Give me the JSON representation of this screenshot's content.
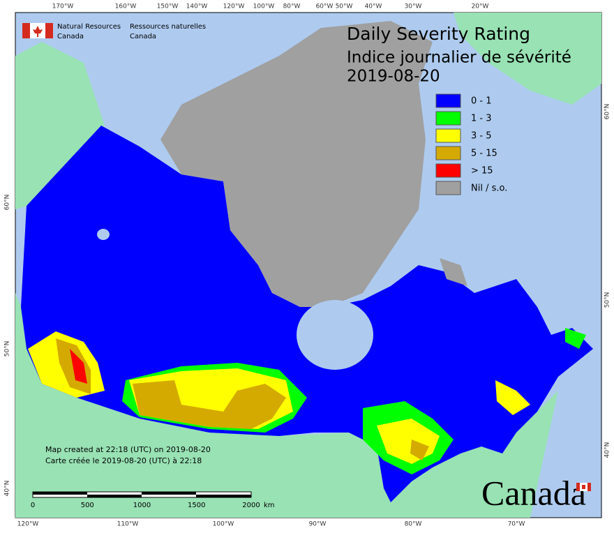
{
  "logo_text": {
    "en_line1": "Natural Resources",
    "en_line2": "Canada",
    "fr_line1": "Ressources naturelles",
    "fr_line2": "Canada"
  },
  "title": [
    "Daily Severity Rating",
    "Indice journalier de sévérité",
    "2019-08-20"
  ],
  "legend": [
    {
      "label": "0 - 1",
      "color": "#0000ff"
    },
    {
      "label": "1 - 3",
      "color": "#00ff00"
    },
    {
      "label": "3 - 5",
      "color": "#ffff00"
    },
    {
      "label": "5 - 15",
      "color": "#d4aa00"
    },
    {
      "label": "> 15",
      "color": "#ff0000"
    },
    {
      "label": "Nil / s.o.",
      "color": "#a0a0a0"
    }
  ],
  "graticule": {
    "top": [
      "170°W",
      "160°W",
      "150°W",
      "140°W",
      "120°W",
      "100°W",
      "80°W",
      "60°W",
      "50°W",
      "40°W",
      "30°W",
      "20°W"
    ],
    "bottom": [
      "120°W",
      "110°W",
      "100°W",
      "90°W",
      "80°W",
      "70°W"
    ],
    "left": [
      "60°N",
      "50°N",
      "40°N"
    ],
    "right": [
      "60°N",
      "50°N",
      "40°N"
    ]
  },
  "notes": [
    "Map created at 22:18 (UTC) on 2019-08-20",
    "Carte créée le 2019-08-20 (UTC) à 22:18"
  ],
  "scale_bar": {
    "labels": [
      "0",
      "500",
      "1000",
      "1500",
      "2000"
    ],
    "unit": "km"
  },
  "wordmark": "Canada"
}
